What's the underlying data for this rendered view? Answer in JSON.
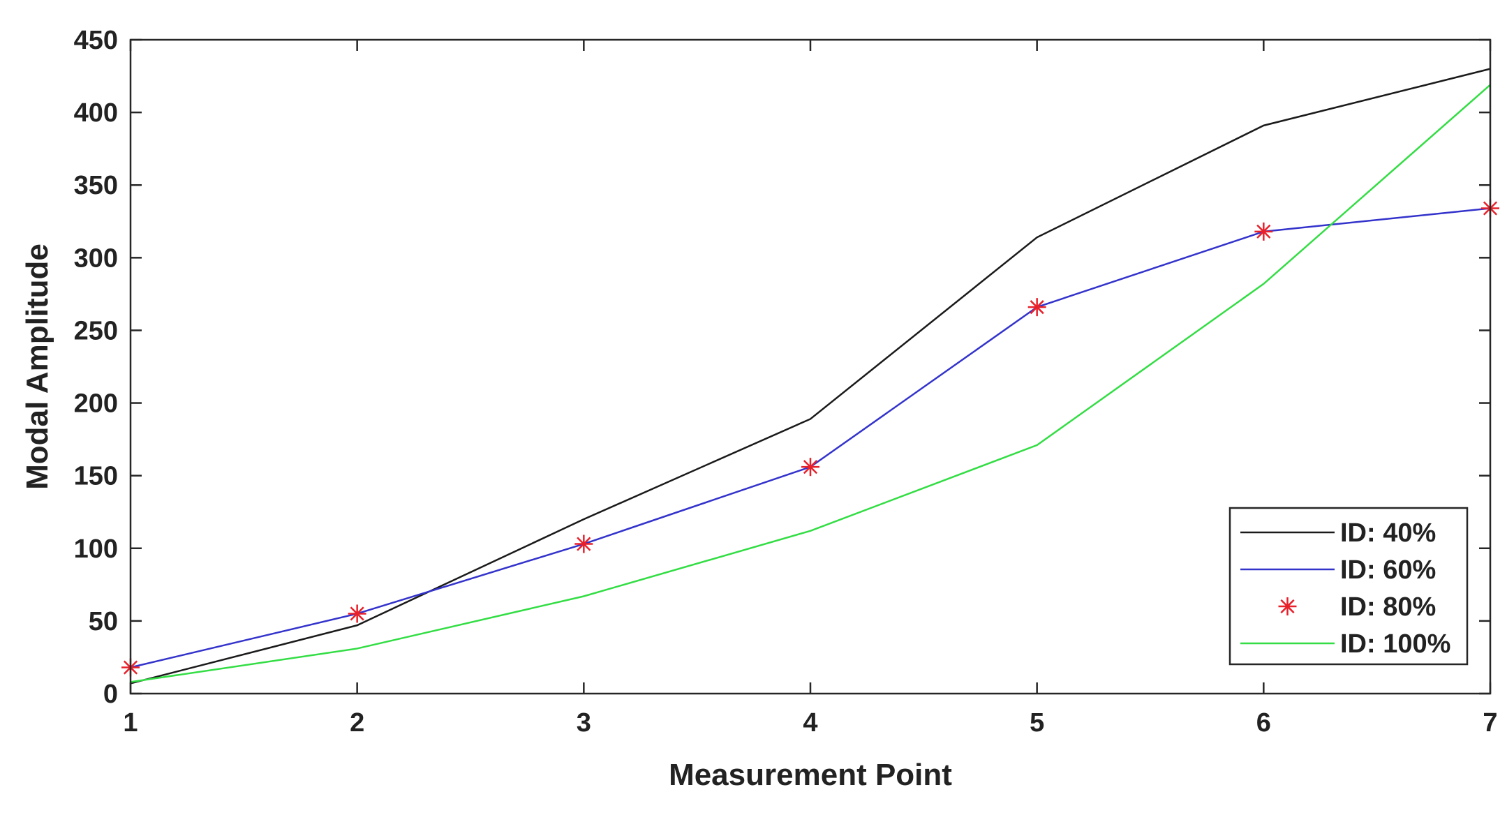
{
  "chart_data": {
    "type": "line",
    "title": "",
    "xlabel": "Measurement Point",
    "ylabel": "Modal Amplitude",
    "x": [
      1,
      2,
      3,
      4,
      5,
      6,
      7
    ],
    "xlim": [
      1,
      7
    ],
    "ylim": [
      0,
      450
    ],
    "xticks": [
      "1",
      "2",
      "3",
      "4",
      "5",
      "6",
      "7"
    ],
    "yticks": [
      "0",
      "50",
      "100",
      "150",
      "200",
      "250",
      "300",
      "350",
      "400",
      "450"
    ],
    "grid": false,
    "legend_position": "bottom-right",
    "series": [
      {
        "name": "ID: 40%",
        "values": [
          7,
          47,
          120,
          189,
          314,
          391,
          430
        ],
        "color": "#1a1a1a",
        "style": "line"
      },
      {
        "name": "ID: 60%",
        "values": [
          18,
          55,
          103,
          156,
          266,
          318,
          334
        ],
        "color": "#3333cc",
        "style": "line"
      },
      {
        "name": "ID: 80%",
        "values": [
          18,
          55,
          103,
          156,
          266,
          318,
          334
        ],
        "color": "#e8202a",
        "style": "marker-star"
      },
      {
        "name": "ID: 100%",
        "values": [
          8,
          31,
          67,
          112,
          171,
          282,
          419
        ],
        "color": "#33dd44",
        "style": "line"
      }
    ]
  }
}
